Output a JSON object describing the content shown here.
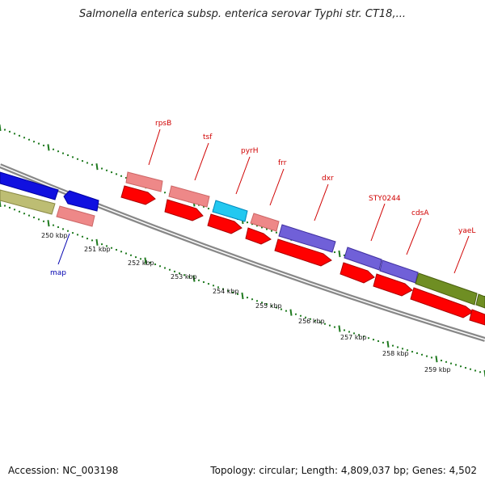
{
  "title": "Salmonella enterica subsp. enterica serovar Typhi str. CT18,...",
  "footer": {
    "accession": "Accession: NC_003198",
    "stats": "Topology: circular; Length: 4,809,037 bp; Genes: 4,502"
  },
  "colors": {
    "backbone": "#888888",
    "ticks": "#1f7a1f",
    "cds_forward": "#ff0000",
    "label_red": "#d00000",
    "label_blue": "#0000b0"
  },
  "tick_labels": [
    "250 kbp",
    "251 kbp",
    "252 kbp",
    "253 kbp",
    "254 kbp",
    "255 kbp",
    "256 kbp",
    "257 kbp",
    "258 kbp",
    "259 kbp"
  ],
  "gene_labels": [
    {
      "text": "rpsB",
      "color": "red"
    },
    {
      "text": "tsf",
      "color": "red"
    },
    {
      "text": "pyrH",
      "color": "red"
    },
    {
      "text": "frr",
      "color": "red"
    },
    {
      "text": "dxr",
      "color": "red"
    },
    {
      "text": "STY0244",
      "color": "red"
    },
    {
      "text": "cdsA",
      "color": "red"
    },
    {
      "text": "yaeL",
      "color": "red"
    },
    {
      "text": "map",
      "color": "blue"
    }
  ]
}
